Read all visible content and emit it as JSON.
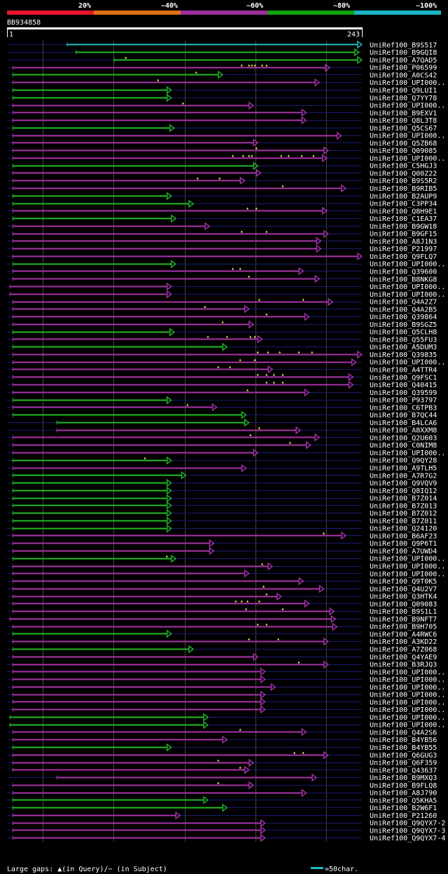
{
  "query": {
    "id": "BB934858",
    "start": "1",
    "end": "243",
    "length": 243
  },
  "colors": {
    "bg": "#000000",
    "base": "#1a1a70",
    "green": "#22bb22",
    "magenta": "#aa33aa",
    "cyan": "#22c0c0",
    "gap": "#ffff55",
    "legend_bar": [
      "#e8142c",
      "#e07014",
      "#9b2d9b",
      "#11a010",
      "#1ab4c4"
    ]
  },
  "identity_legend": [
    "20%",
    "~40%",
    "~60%",
    "~80%",
    "~100%"
  ],
  "footer": {
    "gap_legend": "Large gaps: ▲(in Query)/− (in Subject)",
    "scale_text": "=50char."
  },
  "chart_data": {
    "type": "alignment-overview",
    "x_axis": {
      "min": 1,
      "max": 243
    },
    "hits": [
      {
        "name": "UniRef100_B9S517",
        "start": 42,
        "end": 243,
        "color": "cyan",
        "gaps": []
      },
      {
        "name": "UniRef100_B9GQI8",
        "start": 48,
        "end": 241,
        "color": "green",
        "gaps": []
      },
      {
        "name": "UniRef100_A7QAD5",
        "start": 74,
        "end": 243,
        "color": "green",
        "gaps": [
          82
        ]
      },
      {
        "name": "UniRef100_P06599",
        "start": 5,
        "end": 221,
        "color": "magenta",
        "gaps": [
          161,
          166,
          168,
          170,
          175,
          178
        ]
      },
      {
        "name": "UniRef100_A0CS42",
        "start": 5,
        "end": 148,
        "color": "green",
        "gaps": [
          130
        ]
      },
      {
        "name": "UniRef100_UPI000..",
        "start": 5,
        "end": 214,
        "color": "magenta",
        "gaps": [
          104
        ]
      },
      {
        "name": "UniRef100_Q9LUI1",
        "start": 5,
        "end": 113,
        "color": "green",
        "gaps": []
      },
      {
        "name": "UniRef100_Q7YY78",
        "start": 5,
        "end": 113,
        "color": "green",
        "gaps": []
      },
      {
        "name": "UniRef100_UPI000..",
        "start": 5,
        "end": 169,
        "color": "magenta",
        "gaps": [
          121
        ]
      },
      {
        "name": "UniRef100_B9EXV1",
        "start": 5,
        "end": 205,
        "color": "magenta",
        "gaps": []
      },
      {
        "name": "UniRef100_Q8L3T8",
        "start": 5,
        "end": 205,
        "color": "magenta",
        "gaps": []
      },
      {
        "name": "UniRef100_Q5CS67",
        "start": 5,
        "end": 115,
        "color": "green",
        "gaps": []
      },
      {
        "name": "UniRef100_UPI000..",
        "start": 5,
        "end": 229,
        "color": "magenta",
        "gaps": []
      },
      {
        "name": "UniRef100_Q5ZB68",
        "start": 5,
        "end": 172,
        "color": "magenta",
        "gaps": []
      },
      {
        "name": "UniRef100_Q09085",
        "start": 5,
        "end": 220,
        "color": "magenta",
        "gaps": [
          171
        ]
      },
      {
        "name": "UniRef100_UPI000..",
        "start": 5,
        "end": 219,
        "color": "magenta",
        "gaps": [
          155,
          162,
          166,
          168,
          188,
          193,
          202,
          210
        ]
      },
      {
        "name": "UniRef100_C5HGJ3",
        "start": 5,
        "end": 172,
        "color": "green",
        "gaps": []
      },
      {
        "name": "UniRef100_Q00Z22",
        "start": 5,
        "end": 174,
        "color": "magenta",
        "gaps": []
      },
      {
        "name": "UniRef100_B9S5R2",
        "start": 5,
        "end": 163,
        "color": "magenta",
        "gaps": [
          131,
          146
        ]
      },
      {
        "name": "UniRef100_B9RIB5",
        "start": 5,
        "end": 232,
        "color": "magenta",
        "gaps": [
          189
        ]
      },
      {
        "name": "UniRef100_B2AUP9",
        "start": 5,
        "end": 113,
        "color": "green",
        "gaps": []
      },
      {
        "name": "UniRef100_C3PP34",
        "start": 5,
        "end": 128,
        "color": "green",
        "gaps": []
      },
      {
        "name": "UniRef100_Q8H9E1",
        "start": 5,
        "end": 219,
        "color": "magenta",
        "gaps": [
          165,
          171
        ]
      },
      {
        "name": "UniRef100_C1EA37",
        "start": 5,
        "end": 116,
        "color": "green",
        "gaps": []
      },
      {
        "name": "UniRef100_B9GW18",
        "start": 5,
        "end": 139,
        "color": "magenta",
        "gaps": []
      },
      {
        "name": "UniRef100_B9GF15",
        "start": 5,
        "end": 220,
        "color": "magenta",
        "gaps": [
          161,
          178
        ]
      },
      {
        "name": "UniRef100_A8J1N3",
        "start": 5,
        "end": 215,
        "color": "magenta",
        "gaps": []
      },
      {
        "name": "UniRef100_P21997",
        "start": 5,
        "end": 215,
        "color": "magenta",
        "gaps": []
      },
      {
        "name": "UniRef100_Q9FLQ7",
        "start": 5,
        "end": 243,
        "color": "magenta",
        "gaps": []
      },
      {
        "name": "UniRef100_UPI000..",
        "start": 5,
        "end": 116,
        "color": "green",
        "gaps": []
      },
      {
        "name": "UniRef100_Q39600",
        "start": 5,
        "end": 203,
        "color": "magenta",
        "gaps": [
          155,
          160
        ]
      },
      {
        "name": "UniRef100_B8NKG8",
        "start": 5,
        "end": 214,
        "color": "magenta",
        "gaps": [
          166
        ]
      },
      {
        "name": "UniRef100_UPI000..",
        "start": 3,
        "end": 113,
        "color": "magenta",
        "gaps": []
      },
      {
        "name": "UniRef100_UPI000..",
        "start": 3,
        "end": 113,
        "color": "magenta",
        "gaps": []
      },
      {
        "name": "UniRef100_Q4A2Z7",
        "start": 5,
        "end": 223,
        "color": "magenta",
        "gaps": [
          173,
          203
        ]
      },
      {
        "name": "UniRef100_Q4A2B5",
        "start": 5,
        "end": 166,
        "color": "magenta",
        "gaps": [
          136
        ]
      },
      {
        "name": "UniRef100_Q39864",
        "start": 5,
        "end": 207,
        "color": "magenta",
        "gaps": [
          178
        ]
      },
      {
        "name": "UniRef100_B9SGZ5",
        "start": 5,
        "end": 169,
        "color": "magenta",
        "gaps": [
          148
        ]
      },
      {
        "name": "UniRef100_Q5CLH8",
        "start": 5,
        "end": 115,
        "color": "green",
        "gaps": []
      },
      {
        "name": "UniRef100_Q55FU3",
        "start": 5,
        "end": 175,
        "color": "magenta",
        "gaps": [
          138,
          151,
          167,
          170
        ]
      },
      {
        "name": "UniRef100_A5DUM3",
        "start": 5,
        "end": 151,
        "color": "green",
        "gaps": []
      },
      {
        "name": "UniRef100_Q39835",
        "start": 5,
        "end": 243,
        "color": "magenta",
        "gaps": [
          172,
          179,
          187,
          200,
          209
        ]
      },
      {
        "name": "UniRef100_UPI000..",
        "start": 5,
        "end": 239,
        "color": "magenta",
        "gaps": [
          160,
          170
        ]
      },
      {
        "name": "UniRef100_A4TTR4",
        "start": 5,
        "end": 182,
        "color": "magenta",
        "gaps": [
          145,
          153
        ]
      },
      {
        "name": "UniRef100_Q9FSC1",
        "start": 5,
        "end": 237,
        "color": "magenta",
        "gaps": [
          172,
          178,
          183,
          189
        ]
      },
      {
        "name": "UniRef100_Q40415",
        "start": 5,
        "end": 237,
        "color": "magenta",
        "gaps": [
          178,
          183,
          189
        ]
      },
      {
        "name": "UniRef100_Q39599",
        "start": 5,
        "end": 207,
        "color": "magenta",
        "gaps": [
          165
        ]
      },
      {
        "name": "UniRef100_P93797",
        "start": 5,
        "end": 113,
        "color": "green",
        "gaps": []
      },
      {
        "name": "UniRef100_C6TPB3",
        "start": 5,
        "end": 144,
        "color": "magenta",
        "gaps": [
          124
        ]
      },
      {
        "name": "UniRef100_B7QC44",
        "start": 5,
        "end": 164,
        "color": "green",
        "gaps": []
      },
      {
        "name": "UniRef100_B4LCA6",
        "start": 35,
        "end": 166,
        "color": "green",
        "gaps": []
      },
      {
        "name": "UniRef100_A8XXM8",
        "start": 35,
        "end": 201,
        "color": "magenta",
        "gaps": [
          173
        ]
      },
      {
        "name": "UniRef100_Q2U603",
        "start": 5,
        "end": 214,
        "color": "magenta",
        "gaps": [
          167
        ]
      },
      {
        "name": "UniRef100_C0NIM8",
        "start": 5,
        "end": 208,
        "color": "magenta",
        "gaps": [
          194
        ]
      },
      {
        "name": "UniRef100_UPI000..",
        "start": 5,
        "end": 172,
        "color": "magenta",
        "gaps": []
      },
      {
        "name": "UniRef100_Q9QY28",
        "start": 5,
        "end": 113,
        "color": "green",
        "gaps": [
          95
        ]
      },
      {
        "name": "UniRef100_A9TLH5",
        "start": 5,
        "end": 164,
        "color": "magenta",
        "gaps": []
      },
      {
        "name": "UniRef100_A7R7G2",
        "start": 5,
        "end": 123,
        "color": "green",
        "gaps": []
      },
      {
        "name": "UniRef100_Q9VQV9",
        "start": 5,
        "end": 113,
        "color": "green",
        "gaps": []
      },
      {
        "name": "UniRef100_Q8IQ12",
        "start": 5,
        "end": 113,
        "color": "green",
        "gaps": []
      },
      {
        "name": "UniRef100_B7Z014",
        "start": 5,
        "end": 113,
        "color": "green",
        "gaps": []
      },
      {
        "name": "UniRef100_B7Z013",
        "start": 5,
        "end": 113,
        "color": "green",
        "gaps": []
      },
      {
        "name": "UniRef100_B7Z012",
        "start": 5,
        "end": 113,
        "color": "green",
        "gaps": []
      },
      {
        "name": "UniRef100_B7Z011",
        "start": 5,
        "end": 113,
        "color": "green",
        "gaps": []
      },
      {
        "name": "UniRef100_Q24120",
        "start": 5,
        "end": 113,
        "color": "green",
        "gaps": []
      },
      {
        "name": "UniRef100_B6AF23",
        "start": 5,
        "end": 232,
        "color": "magenta",
        "gaps": [
          217
        ]
      },
      {
        "name": "UniRef100_Q9P6T1",
        "start": 5,
        "end": 142,
        "color": "magenta",
        "gaps": []
      },
      {
        "name": "UniRef100_A7UWD4",
        "start": 5,
        "end": 142,
        "color": "magenta",
        "gaps": []
      },
      {
        "name": "UniRef100_UPI000..",
        "start": 5,
        "end": 116,
        "color": "green",
        "gaps": [
          110
        ]
      },
      {
        "name": "UniRef100_UPI000..",
        "start": 5,
        "end": 182,
        "color": "magenta",
        "gaps": [
          175
        ]
      },
      {
        "name": "UniRef100_UPI000..",
        "start": 5,
        "end": 166,
        "color": "magenta",
        "gaps": []
      },
      {
        "name": "UniRef100_Q9T0K5",
        "start": 5,
        "end": 203,
        "color": "magenta",
        "gaps": []
      },
      {
        "name": "UniRef100_Q4U2V7",
        "start": 5,
        "end": 217,
        "color": "magenta",
        "gaps": [
          176
        ]
      },
      {
        "name": "UniRef100_Q3HTK4",
        "start": 5,
        "end": 188,
        "color": "magenta",
        "gaps": [
          178
        ]
      },
      {
        "name": "UniRef100_Q09083",
        "start": 5,
        "end": 207,
        "color": "magenta",
        "gaps": [
          157,
          161,
          165,
          173
        ]
      },
      {
        "name": "UniRef100_B9S1L1",
        "start": 5,
        "end": 224,
        "color": "magenta",
        "gaps": [
          164,
          189
        ]
      },
      {
        "name": "UniRef100_B9NFT7",
        "start": 3,
        "end": 225,
        "color": "magenta",
        "gaps": []
      },
      {
        "name": "UniRef100_B9H705",
        "start": 5,
        "end": 226,
        "color": "magenta",
        "gaps": [
          172,
          178
        ]
      },
      {
        "name": "UniRef100_A4RWC6",
        "start": 5,
        "end": 113,
        "color": "green",
        "gaps": []
      },
      {
        "name": "UniRef100_A3KD22",
        "start": 5,
        "end": 220,
        "color": "magenta",
        "gaps": [
          166,
          186
        ]
      },
      {
        "name": "UniRef100_A7Z068",
        "start": 5,
        "end": 128,
        "color": "green",
        "gaps": []
      },
      {
        "name": "UniRef100_Q4YAE9",
        "start": 5,
        "end": 172,
        "color": "magenta",
        "gaps": []
      },
      {
        "name": "UniRef100_B3RJQ3",
        "start": 5,
        "end": 220,
        "color": "magenta",
        "gaps": [
          200
        ]
      },
      {
        "name": "UniRef100_UPI000..",
        "start": 5,
        "end": 177,
        "color": "magenta",
        "gaps": []
      },
      {
        "name": "UniRef100_UPI000..",
        "start": 5,
        "end": 177,
        "color": "magenta",
        "gaps": []
      },
      {
        "name": "UniRef100_UPI000..",
        "start": 5,
        "end": 184,
        "color": "magenta",
        "gaps": []
      },
      {
        "name": "UniRef100_UPI000..",
        "start": 5,
        "end": 177,
        "color": "magenta",
        "gaps": []
      },
      {
        "name": "UniRef100_UPI000..",
        "start": 5,
        "end": 177,
        "color": "magenta",
        "gaps": []
      },
      {
        "name": "UniRef100_UPI000..",
        "start": 5,
        "end": 177,
        "color": "magenta",
        "gaps": []
      },
      {
        "name": "UniRef100_UPI000..",
        "start": 3,
        "end": 138,
        "color": "green",
        "gaps": []
      },
      {
        "name": "UniRef100_UPI000..",
        "start": 3,
        "end": 138,
        "color": "green",
        "gaps": []
      },
      {
        "name": "UniRef100_Q4A2S6",
        "start": 5,
        "end": 205,
        "color": "magenta",
        "gaps": [
          160
        ]
      },
      {
        "name": "UniRef100_B4YB56",
        "start": 5,
        "end": 151,
        "color": "magenta",
        "gaps": []
      },
      {
        "name": "UniRef100_B4YB55",
        "start": 5,
        "end": 113,
        "color": "green",
        "gaps": []
      },
      {
        "name": "UniRef100_Q6GUG3",
        "start": 5,
        "end": 220,
        "color": "magenta",
        "gaps": [
          197,
          203
        ]
      },
      {
        "name": "UniRef100_Q6F359",
        "start": 5,
        "end": 169,
        "color": "magenta",
        "gaps": [
          145
        ]
      },
      {
        "name": "UniRef100_Q43637",
        "start": 5,
        "end": 166,
        "color": "magenta",
        "gaps": [
          160
        ]
      },
      {
        "name": "UniRef100_B9MXQ3",
        "start": 35,
        "end": 212,
        "color": "magenta",
        "gaps": []
      },
      {
        "name": "UniRef100_B9FLQ8",
        "start": 5,
        "end": 169,
        "color": "magenta",
        "gaps": [
          145
        ]
      },
      {
        "name": "UniRef100_A8J790",
        "start": 5,
        "end": 205,
        "color": "magenta",
        "gaps": []
      },
      {
        "name": "UniRef100_Q5KHA5",
        "start": 5,
        "end": 138,
        "color": "green",
        "gaps": []
      },
      {
        "name": "UniRef100_B2W6F1",
        "start": 5,
        "end": 151,
        "color": "green",
        "gaps": []
      },
      {
        "name": "UniRef100_P21260",
        "start": 5,
        "end": 119,
        "color": "magenta",
        "gaps": []
      },
      {
        "name": "UniRef100_Q9QYX7-2",
        "start": 5,
        "end": 177,
        "color": "magenta",
        "gaps": []
      },
      {
        "name": "UniRef100_Q9QYX7-3",
        "start": 5,
        "end": 177,
        "color": "magenta",
        "gaps": []
      },
      {
        "name": "UniRef100_Q9QYX7-4",
        "start": 5,
        "end": 177,
        "color": "magenta",
        "gaps": []
      }
    ]
  }
}
